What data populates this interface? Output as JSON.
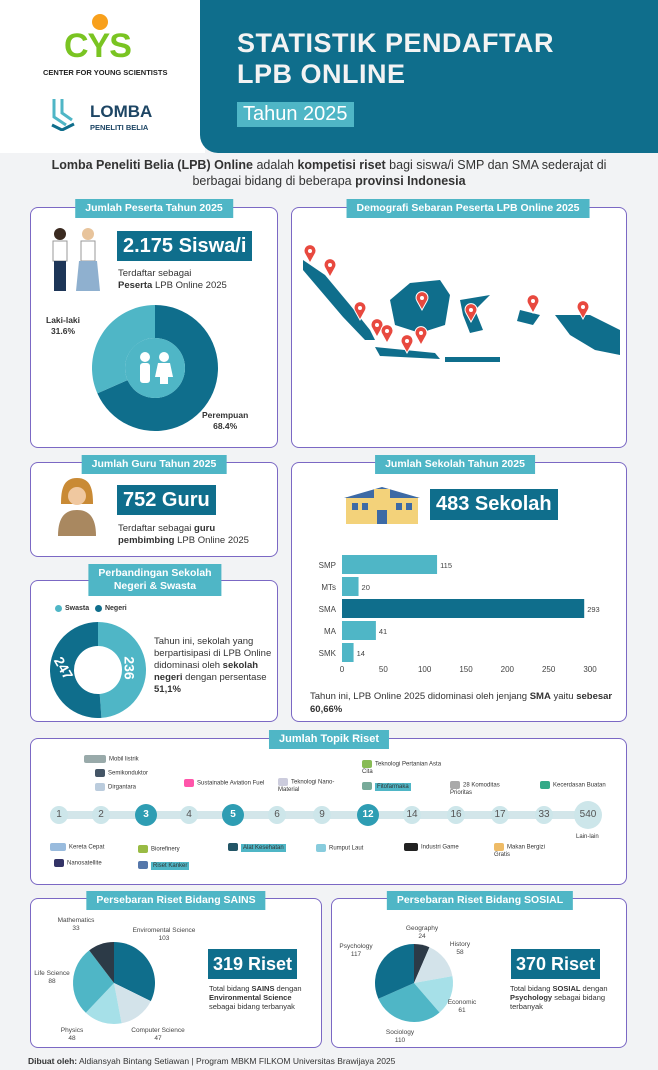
{
  "header": {
    "title_line1": "STATISTIK PENDAFTAR",
    "title_line2": "LPB ONLINE",
    "year": "Tahun 2025",
    "logo1": {
      "text": "CYS",
      "subtitle": "CENTER FOR YOUNG SCIENTISTS"
    },
    "logo2": {
      "text": "LOMBA",
      "subtitle": "PENELITI BELIA"
    }
  },
  "intro": {
    "p1b": "Lomba Peneliti Belia (LPB) Online",
    "p2": " adalah ",
    "p3b": "kompetisi riset",
    "p4": " bagi siswa/i SMP dan SMA sederajat di berbagai bidang di beberapa ",
    "p5b": "provinsi Indonesia"
  },
  "peserta": {
    "tab": "Jumlah Peserta Tahun 2025",
    "count": "2.175 Siswa/i",
    "desc1": "Terdaftar sebagai",
    "desc2b": "Peserta",
    "desc3": " LPB Online 2025",
    "male_label": "Laki-laki",
    "male_pct": "31.6%",
    "female_label": "Perempuan",
    "female_pct": "68.4%",
    "male_value": 31.6,
    "female_value": 68.4,
    "colors": {
      "male": "#4fb6c6",
      "female": "#0f6e8c"
    }
  },
  "map": {
    "tab": "Demografi Sebaran Peserta LPB Online 2025",
    "pin_color": "#e8493f"
  },
  "guru": {
    "tab": "Jumlah Guru Tahun 2025",
    "count": "752 Guru",
    "desc1": "Terdaftar sebagai ",
    "desc2b": "guru",
    "desc3b": "pembimbing",
    "desc4": " LPB Online 2025"
  },
  "sekolah": {
    "tab": "Jumlah Sekolah Tahun 2025",
    "count": "483 Sekolah",
    "note1": "Tahun ini, LPB Online 2025 didominasi oleh jenjang ",
    "note2b": "SMA",
    "note3": " yaitu ",
    "note4b": "sebesar 60,66%"
  },
  "perbandingan": {
    "tab_line1": "Perbandingan Sekolah",
    "tab_line2": "Negeri & Swasta",
    "legend": [
      "Swasta",
      "Negeri"
    ],
    "swasta": 236,
    "negeri": 247,
    "swasta_label": "236",
    "negeri_label": "247",
    "note1": "Tahun ini, sekolah yang berpartisipasi di LPB Online didominasi oleh ",
    "note2b": "sekolah negeri",
    "note3": " dengan persentase ",
    "note4b": "51,1%"
  },
  "topik": {
    "tab": "Jumlah Topik Riset",
    "nodes": [
      {
        "v": "1"
      },
      {
        "v": "2"
      },
      {
        "v": "3",
        "hl": true
      },
      {
        "v": "4"
      },
      {
        "v": "5",
        "hl": true
      },
      {
        "v": "6"
      },
      {
        "v": "9"
      },
      {
        "v": "12",
        "hl": true
      },
      {
        "v": "14"
      },
      {
        "v": "16"
      },
      {
        "v": "17"
      },
      {
        "v": "33"
      },
      {
        "v": "540"
      }
    ],
    "labels": {
      "mobil": "Mobil listrik",
      "semikonduktor": "Semikonduktor",
      "dirgantara": "Dirgantara",
      "saf": "Sustainable Aviation Fuel",
      "nano": "Teknologi Nano-Material",
      "pertanian": "Teknologi Pertanian Asta Cita",
      "fitofarmaka": "Fitofarmaka",
      "komoditas": "28 Komoditas Prioritas",
      "ai": "Kecerdasan Buatan",
      "kereta": "Kereta Cepat",
      "nanosat": "Nanosatellite",
      "biorefinery": "Biorefinery",
      "kanker": "Riset Kanker",
      "alkes": "Alat Kesehatan",
      "rumput": "Rumput Laut",
      "game": "Industri Game",
      "mbg": "Makan Bergizi Gratis",
      "lain": "Lain-lain"
    }
  },
  "sains": {
    "tab": "Persebaran Riset Bidang SAINS",
    "total": "319 Riset",
    "d1": "Total bidang ",
    "d2b": "SAINS",
    "d3": " dengan ",
    "d4b": "Environmental Science",
    "d5": " sebagai bidang terbanyak"
  },
  "sosial": {
    "tab": "Persebaran Riset Bidang SOSIAL",
    "total": "370 Riset",
    "d1": "Total bidang ",
    "d2b": "SOSIAL",
    "d3": " dengan ",
    "d4b": "Psychology",
    "d5": " sebagai bidang terbanyak"
  },
  "footer": {
    "label": "Dibuat oleh:",
    "text": " Aldiansyah Bintang Setiawan | Program MBKM FILKOM Universitas Brawijaya 2025"
  },
  "chart_data": [
    {
      "type": "bar",
      "orientation": "horizontal",
      "categories": [
        "SMP",
        "MTs",
        "SMA",
        "MA",
        "SMK"
      ],
      "values": [
        115,
        20,
        293,
        41,
        14
      ],
      "xlim": [
        0,
        300
      ],
      "xticks": [
        0,
        50,
        100,
        150,
        200,
        250,
        300
      ],
      "highlight": "SMA",
      "colors": {
        "default": "#4fb6c6",
        "highlight": "#0f6e8c"
      }
    },
    {
      "type": "pie",
      "categories": [
        "Enviromental Science",
        "Computer Science",
        "Physics",
        "Life Science",
        "Mathematics"
      ],
      "values": [
        103,
        47,
        48,
        88,
        33
      ],
      "colors": [
        "#0f6e8c",
        "#d3e3ea",
        "#a6e0e8",
        "#4fb6c6",
        "#2c3a47"
      ]
    },
    {
      "type": "pie",
      "categories": [
        "Geography",
        "History",
        "Economic",
        "Sociology",
        "Psychology"
      ],
      "values": [
        24,
        58,
        61,
        110,
        117
      ],
      "colors": [
        "#2c3a47",
        "#d3e3ea",
        "#a6e0e8",
        "#4fb6c6",
        "#0f6e8c"
      ]
    }
  ]
}
